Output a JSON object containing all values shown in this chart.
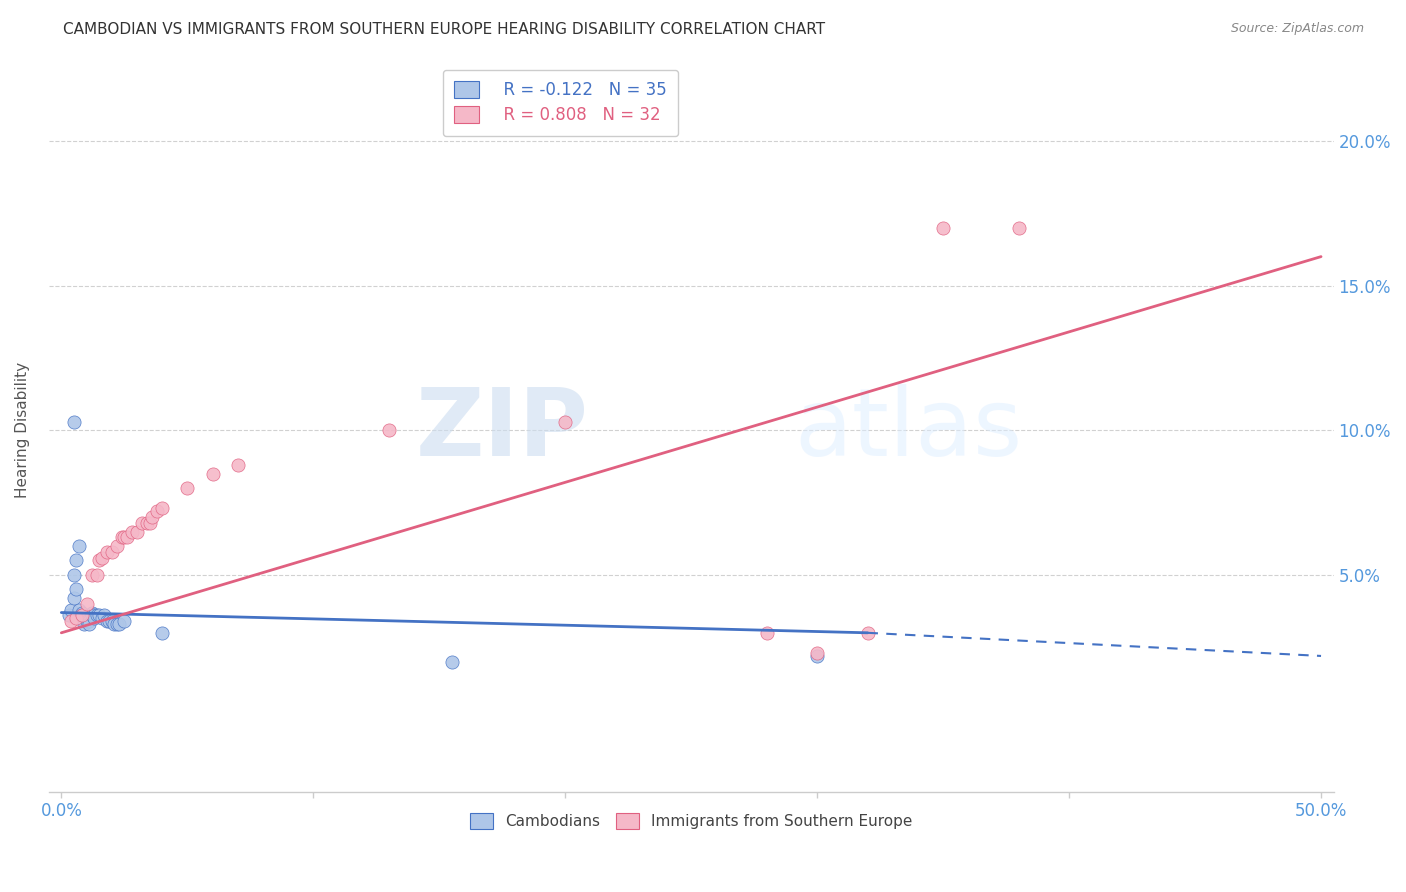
{
  "title": "CAMBODIAN VS IMMIGRANTS FROM SOUTHERN EUROPE HEARING DISABILITY CORRELATION CHART",
  "source": "Source: ZipAtlas.com",
  "ylabel": "Hearing Disability",
  "ytick_labels": [
    "20.0%",
    "15.0%",
    "10.0%",
    "5.0%"
  ],
  "ytick_values": [
    0.2,
    0.15,
    0.1,
    0.05
  ],
  "xlim": [
    -0.005,
    0.505
  ],
  "ylim": [
    -0.025,
    0.225
  ],
  "legend_R_cambodian": "R = -0.122",
  "legend_N_cambodian": "N = 35",
  "legend_R_southern": "R = 0.808",
  "legend_N_southern": "N = 32",
  "cambodian_color": "#aec6e8",
  "southern_color": "#f5b8c8",
  "trendline_cambodian_color": "#4472c4",
  "trendline_southern_color": "#e06080",
  "watermark_zip": "ZIP",
  "watermark_atlas": "atlas",
  "cambodian_scatter": [
    [
      0.003,
      0.036
    ],
    [
      0.004,
      0.038
    ],
    [
      0.005,
      0.05
    ],
    [
      0.005,
      0.042
    ],
    [
      0.006,
      0.055
    ],
    [
      0.006,
      0.045
    ],
    [
      0.007,
      0.06
    ],
    [
      0.007,
      0.038
    ],
    [
      0.008,
      0.037
    ],
    [
      0.008,
      0.036
    ],
    [
      0.009,
      0.034
    ],
    [
      0.009,
      0.033
    ],
    [
      0.01,
      0.035
    ],
    [
      0.01,
      0.034
    ],
    [
      0.011,
      0.034
    ],
    [
      0.011,
      0.033
    ],
    [
      0.012,
      0.037
    ],
    [
      0.012,
      0.036
    ],
    [
      0.013,
      0.036
    ],
    [
      0.013,
      0.035
    ],
    [
      0.014,
      0.036
    ],
    [
      0.015,
      0.036
    ],
    [
      0.016,
      0.035
    ],
    [
      0.017,
      0.036
    ],
    [
      0.018,
      0.034
    ],
    [
      0.019,
      0.034
    ],
    [
      0.02,
      0.034
    ],
    [
      0.021,
      0.033
    ],
    [
      0.022,
      0.033
    ],
    [
      0.023,
      0.033
    ],
    [
      0.025,
      0.034
    ],
    [
      0.005,
      0.103
    ],
    [
      0.155,
      0.02
    ],
    [
      0.3,
      0.022
    ],
    [
      0.04,
      0.03
    ]
  ],
  "southern_scatter": [
    [
      0.004,
      0.034
    ],
    [
      0.006,
      0.035
    ],
    [
      0.008,
      0.036
    ],
    [
      0.01,
      0.04
    ],
    [
      0.012,
      0.05
    ],
    [
      0.014,
      0.05
    ],
    [
      0.015,
      0.055
    ],
    [
      0.016,
      0.056
    ],
    [
      0.018,
      0.058
    ],
    [
      0.02,
      0.058
    ],
    [
      0.022,
      0.06
    ],
    [
      0.024,
      0.063
    ],
    [
      0.025,
      0.063
    ],
    [
      0.026,
      0.063
    ],
    [
      0.028,
      0.065
    ],
    [
      0.03,
      0.065
    ],
    [
      0.032,
      0.068
    ],
    [
      0.034,
      0.068
    ],
    [
      0.035,
      0.068
    ],
    [
      0.036,
      0.07
    ],
    [
      0.038,
      0.072
    ],
    [
      0.04,
      0.073
    ],
    [
      0.05,
      0.08
    ],
    [
      0.06,
      0.085
    ],
    [
      0.07,
      0.088
    ],
    [
      0.13,
      0.1
    ],
    [
      0.2,
      0.103
    ],
    [
      0.35,
      0.17
    ],
    [
      0.28,
      0.03
    ],
    [
      0.3,
      0.023
    ],
    [
      0.32,
      0.03
    ],
    [
      0.38,
      0.17
    ]
  ],
  "background_color": "#ffffff",
  "grid_color": "#cccccc",
  "trendline_camb_x0": 0.0,
  "trendline_camb_y0": 0.037,
  "trendline_camb_x1": 0.32,
  "trendline_camb_y1": 0.03,
  "trendline_camb_dash_x0": 0.32,
  "trendline_camb_dash_y0": 0.03,
  "trendline_camb_dash_x1": 0.5,
  "trendline_camb_dash_y1": 0.022,
  "trendline_south_x0": 0.0,
  "trendline_south_y0": 0.03,
  "trendline_south_x1": 0.5,
  "trendline_south_y1": 0.16
}
